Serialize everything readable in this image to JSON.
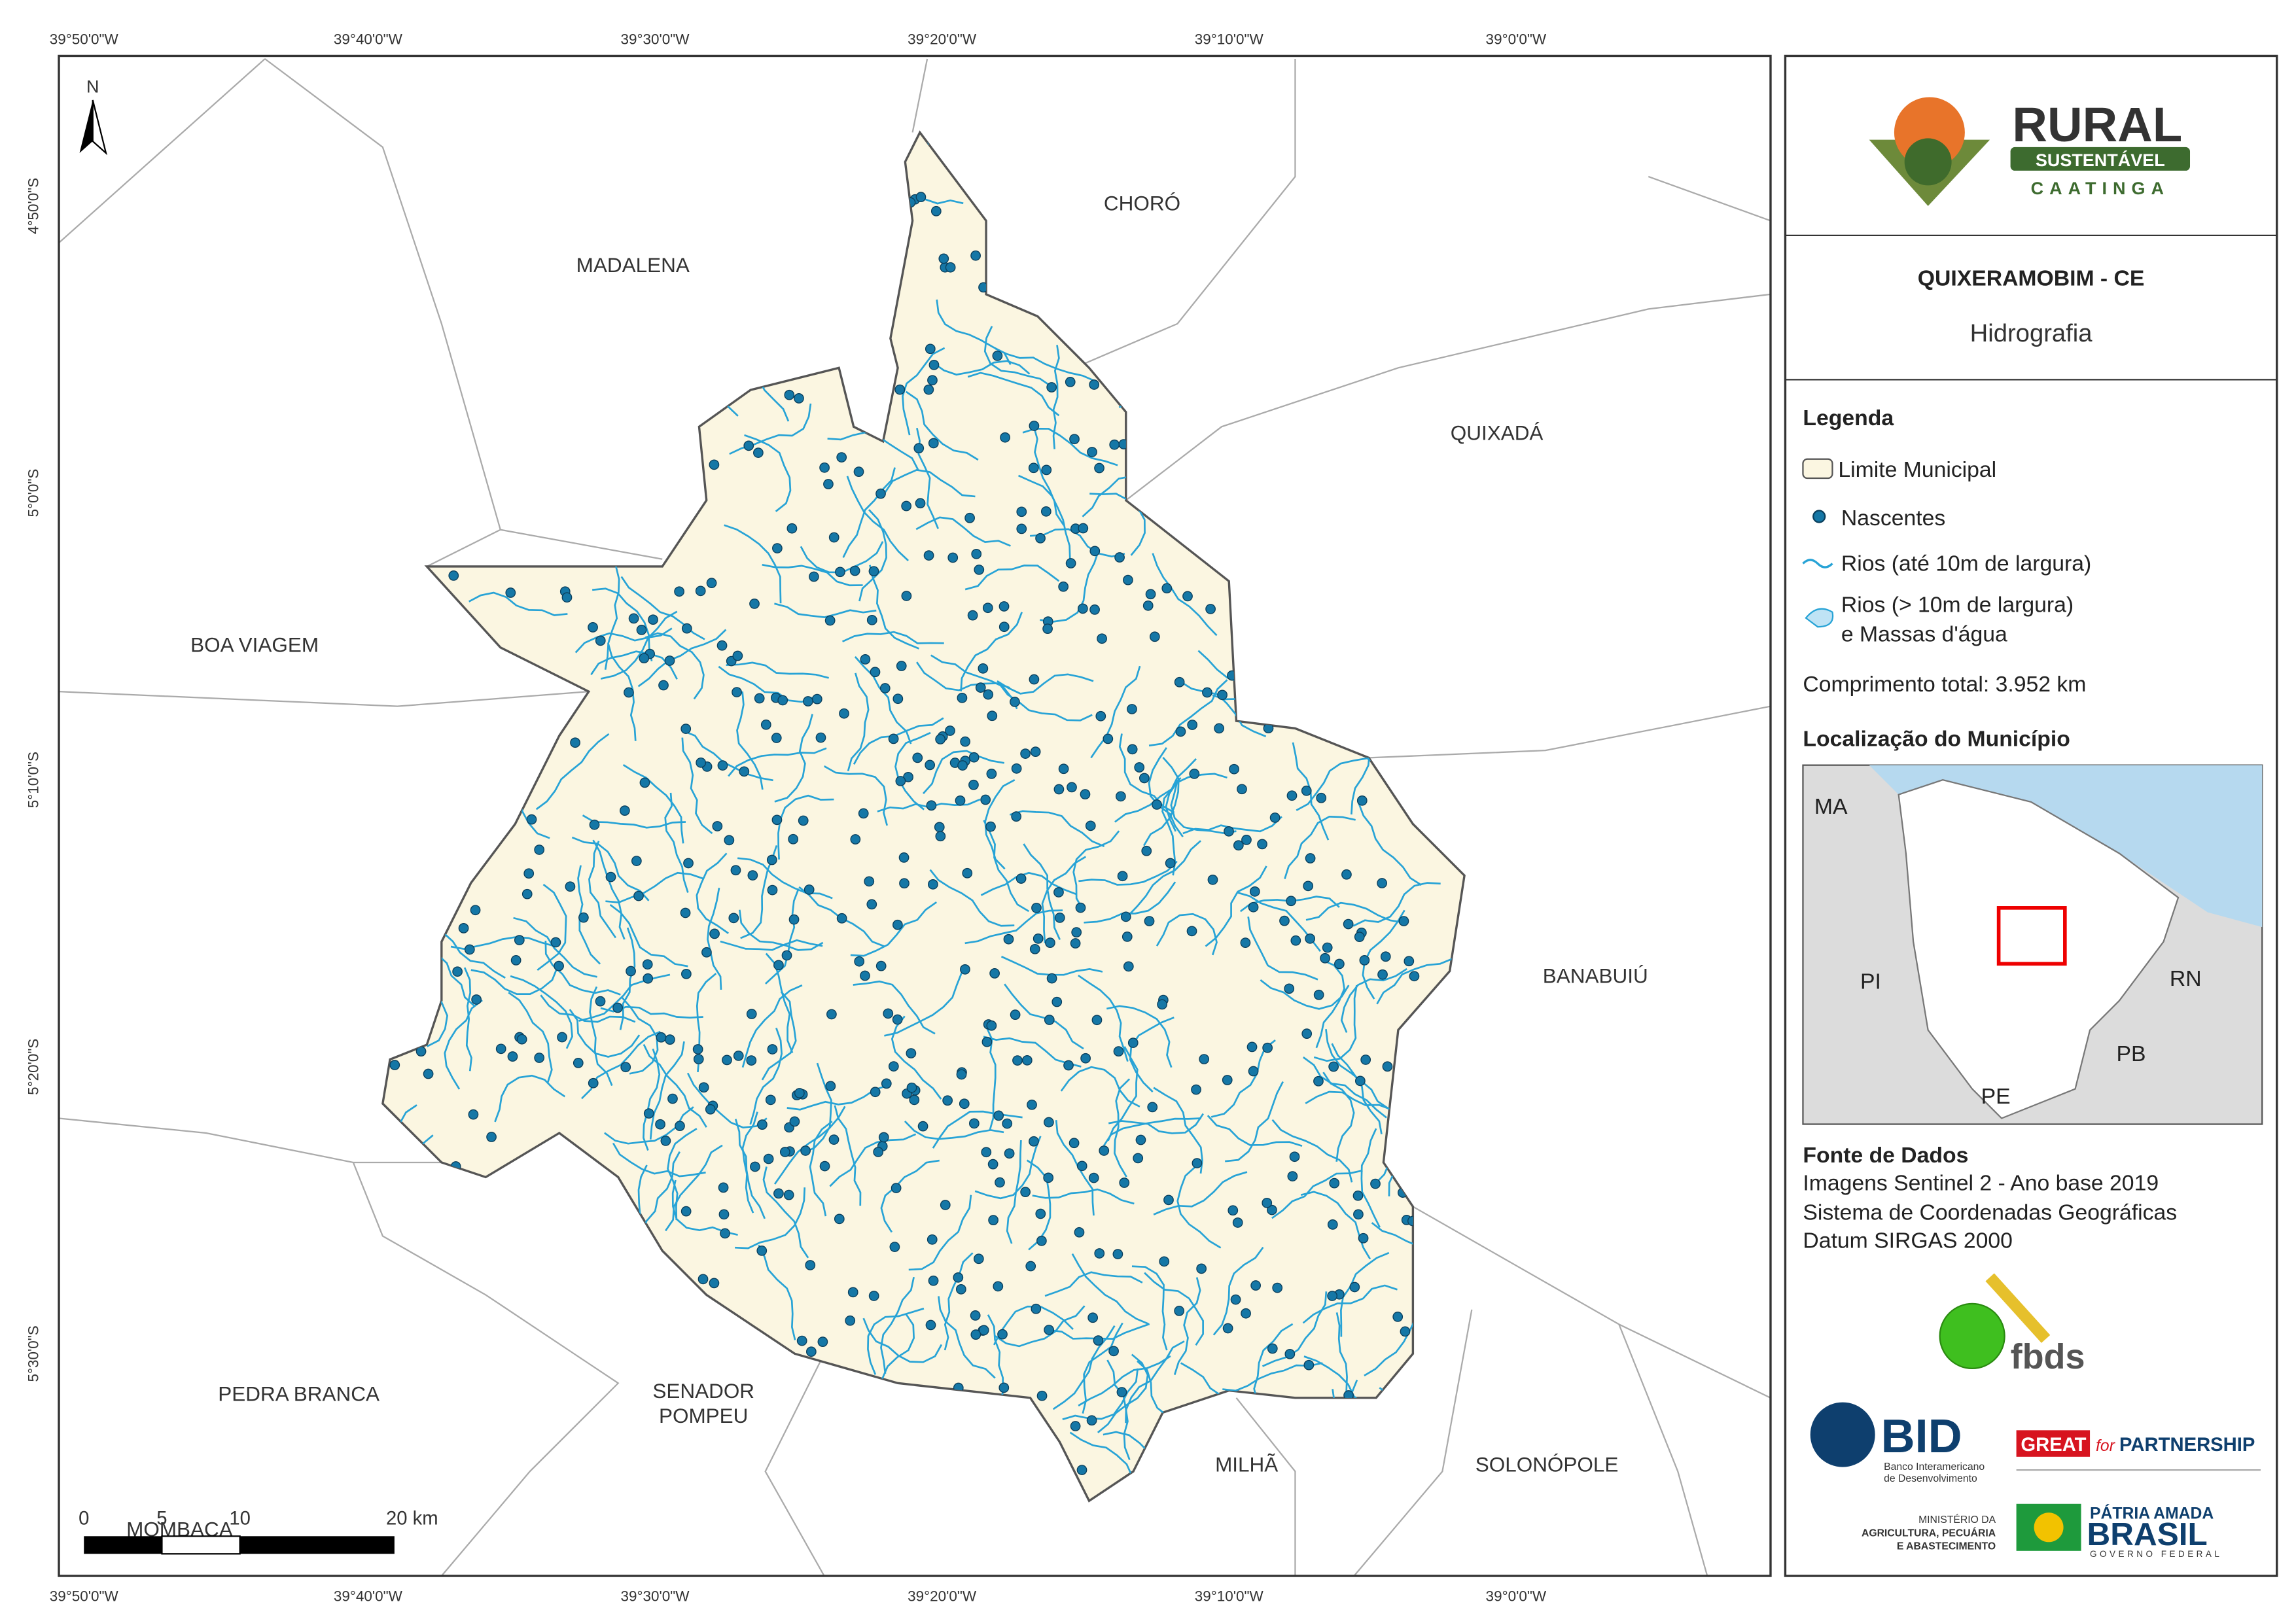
{
  "map": {
    "grid_labels": {
      "top": [
        "39°50'0\"W",
        "39°40'0\"W",
        "39°30'0\"W",
        "39°20'0\"W",
        "39°10'0\"W",
        "39°0'0\"W"
      ],
      "bottom": [
        "39°50'0\"W",
        "39°40'0\"W",
        "39°30'0\"W",
        "39°20'0\"W",
        "39°10'0\"W",
        "39°0'0\"W"
      ],
      "left": [
        "4°50'0\"S",
        "5°0'0\"S",
        "5°10'0\"S",
        "5°20'0\"S",
        "5°30'0\"S"
      ]
    },
    "places": [
      "CHORÓ",
      "MADALENA",
      "QUIXADÁ",
      "BOA VIAGEM",
      "BANABUIÚ",
      "PEDRA BRANCA",
      "SENADOR",
      "POMPEU",
      "MILHÃ",
      "SOLONÓPOLE",
      "MOMBAÇA"
    ],
    "north": "N",
    "scale_bar": [
      "0",
      "5",
      "10",
      "20 km"
    ]
  },
  "header": {
    "title": "QUIXERAMOBIM - CE",
    "subtitle": "Hidrografia"
  },
  "logo": {
    "rural": "RURAL",
    "sustentavel": "SUSTENTÁVEL",
    "caatinga": "CAATINGA"
  },
  "legend": {
    "title": "Legenda",
    "items": [
      "Limite Municipal",
      "Nascentes",
      "Rios (até 10m de largura)",
      "Rios (> 10m de largura)",
      "e Massas d'água"
    ],
    "total": "Comprimento total:  3.952 km"
  },
  "location": {
    "title": "Localização do Município",
    "states": [
      "MA",
      "PI",
      "RN",
      "PB",
      "PE"
    ]
  },
  "source": {
    "title": "Fonte de Dados",
    "lines": [
      "Imagens Sentinel 2 - Ano base 2019",
      "Sistema de Coordenadas Geográficas",
      "Datum SIRGAS 2000"
    ]
  },
  "partners": {
    "fbds": "fbds",
    "bid": "BID",
    "bid_sub": [
      "Banco Interamericano",
      "de Desenvolvimento"
    ],
    "great": "GREAT",
    "for": "for",
    "partnership": "PARTNERSHIP",
    "ministry": [
      "MINISTÉRIO DA",
      "AGRICULTURA, PECUÁRIA",
      "E ABASTECIMENTO"
    ],
    "patria": "PÁTRIA AMADA",
    "brasil": "BRASIL",
    "gov": "GOVERNO FEDERAL"
  }
}
